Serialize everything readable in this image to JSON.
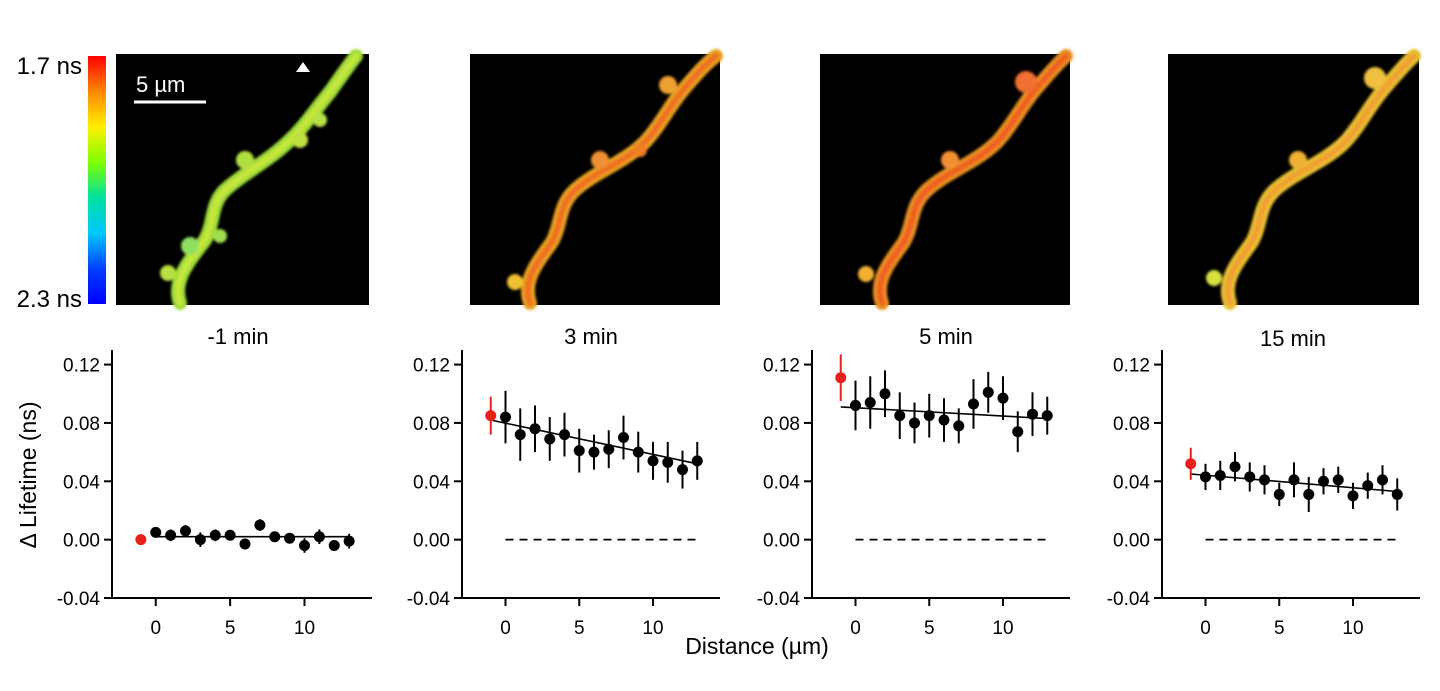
{
  "colorbar": {
    "top_label": "1.7 ns",
    "bottom_label": "2.3 ns",
    "colors": [
      "#ff0000",
      "#ff8800",
      "#ffee00",
      "#7fff00",
      "#00e0a0",
      "#00c8ff",
      "#0040ff",
      "#0000ff"
    ]
  },
  "scalebar": {
    "label": "5 µm"
  },
  "figure_text": {
    "xlabel": "Distance (µm)",
    "ylabel": "Δ Lifetime (ns)"
  },
  "chart_data": [
    {
      "type": "scatter",
      "title": "-1 min",
      "xlim": [
        -2,
        14
      ],
      "ylim": [
        -0.04,
        0.13
      ],
      "xticks": [
        0,
        5,
        10
      ],
      "xtick_labels": [
        "0",
        "5",
        "10"
      ],
      "yticks": [
        -0.04,
        0,
        0.04,
        0.08,
        0.12
      ],
      "ytick_labels": [
        "-0.04",
        "0.00",
        "0.04",
        "0.08",
        "0.12"
      ],
      "red_point": {
        "x": -1,
        "y": 0.0,
        "err": 0.002
      },
      "series": [
        {
          "x": [
            0,
            1,
            2,
            3,
            4,
            5,
            6,
            7,
            8,
            9,
            10,
            11,
            12,
            13
          ],
          "y": [
            0.005,
            0.003,
            0.006,
            0.0,
            0.003,
            0.003,
            -0.003,
            0.01,
            0.002,
            0.001,
            -0.004,
            0.002,
            -0.004,
            -0.001
          ],
          "err": [
            0.003,
            0.004,
            0.004,
            0.005,
            0.004,
            0.003,
            0.003,
            0.004,
            0.002,
            0.003,
            0.005,
            0.005,
            0.003,
            0.005
          ]
        }
      ],
      "fit": {
        "x": [
          0,
          13
        ],
        "y": [
          0.002,
          0.002
        ]
      },
      "baseline": null
    },
    {
      "type": "scatter",
      "title": "3 min",
      "xlim": [
        -2,
        14
      ],
      "ylim": [
        -0.04,
        0.13
      ],
      "xticks": [
        0,
        5,
        10
      ],
      "xtick_labels": [
        "0",
        "5",
        "10"
      ],
      "yticks": [
        -0.04,
        0,
        0.04,
        0.08,
        0.12
      ],
      "ytick_labels": [
        "-0.04",
        "0.00",
        "0.04",
        "0.08",
        "0.12"
      ],
      "red_point": {
        "x": -1,
        "y": 0.085,
        "err": 0.013
      },
      "series": [
        {
          "x": [
            0,
            1,
            2,
            3,
            4,
            5,
            6,
            7,
            8,
            9,
            10,
            11,
            12,
            13
          ],
          "y": [
            0.084,
            0.072,
            0.076,
            0.069,
            0.072,
            0.061,
            0.06,
            0.062,
            0.07,
            0.06,
            0.054,
            0.053,
            0.048,
            0.054
          ],
          "err": [
            0.018,
            0.018,
            0.016,
            0.015,
            0.015,
            0.015,
            0.012,
            0.013,
            0.015,
            0.014,
            0.013,
            0.014,
            0.013,
            0.013
          ]
        }
      ],
      "fit": {
        "x": [
          -1,
          13
        ],
        "y": [
          0.082,
          0.052
        ]
      },
      "baseline": {
        "x": [
          0,
          13
        ],
        "y": 0
      }
    },
    {
      "type": "scatter",
      "title": "5 min",
      "xlim": [
        -2,
        14
      ],
      "ylim": [
        -0.04,
        0.13
      ],
      "xticks": [
        0,
        5,
        10
      ],
      "xtick_labels": [
        "0",
        "5",
        "10"
      ],
      "yticks": [
        -0.04,
        0,
        0.04,
        0.08,
        0.12
      ],
      "ytick_labels": [
        "-0.04",
        "0.00",
        "0.04",
        "0.08",
        "0.12"
      ],
      "red_point": {
        "x": -1,
        "y": 0.111,
        "err": 0.016
      },
      "series": [
        {
          "x": [
            0,
            1,
            2,
            3,
            4,
            5,
            6,
            7,
            8,
            9,
            10,
            11,
            12,
            13
          ],
          "y": [
            0.092,
            0.094,
            0.1,
            0.085,
            0.08,
            0.085,
            0.082,
            0.078,
            0.093,
            0.101,
            0.097,
            0.074,
            0.086,
            0.085
          ],
          "err": [
            0.017,
            0.018,
            0.016,
            0.016,
            0.014,
            0.015,
            0.015,
            0.012,
            0.017,
            0.014,
            0.015,
            0.014,
            0.015,
            0.013
          ]
        }
      ],
      "fit": {
        "x": [
          -1,
          13
        ],
        "y": [
          0.091,
          0.083
        ]
      },
      "baseline": {
        "x": [
          0,
          13
        ],
        "y": 0
      }
    },
    {
      "type": "scatter",
      "title": "15 min",
      "xlim": [
        -2,
        14
      ],
      "ylim": [
        -0.04,
        0.13
      ],
      "xticks": [
        0,
        5,
        10
      ],
      "xtick_labels": [
        "0",
        "5",
        "10"
      ],
      "yticks": [
        -0.04,
        0,
        0.04,
        0.08,
        0.12
      ],
      "ytick_labels": [
        "-0.04",
        "0.00",
        "0.04",
        "0.08",
        "0.12"
      ],
      "red_point": {
        "x": -1,
        "y": 0.052,
        "err": 0.011
      },
      "series": [
        {
          "x": [
            0,
            1,
            2,
            3,
            4,
            5,
            6,
            7,
            8,
            9,
            10,
            11,
            12,
            13
          ],
          "y": [
            0.043,
            0.044,
            0.05,
            0.043,
            0.041,
            0.031,
            0.041,
            0.031,
            0.04,
            0.041,
            0.03,
            0.037,
            0.041,
            0.031
          ],
          "err": [
            0.009,
            0.01,
            0.01,
            0.01,
            0.01,
            0.008,
            0.012,
            0.012,
            0.009,
            0.009,
            0.009,
            0.009,
            0.01,
            0.011
          ]
        }
      ],
      "fit": {
        "x": [
          -1,
          13
        ],
        "y": [
          0.045,
          0.033
        ]
      },
      "baseline": {
        "x": [
          0,
          13
        ],
        "y": 0
      }
    }
  ]
}
